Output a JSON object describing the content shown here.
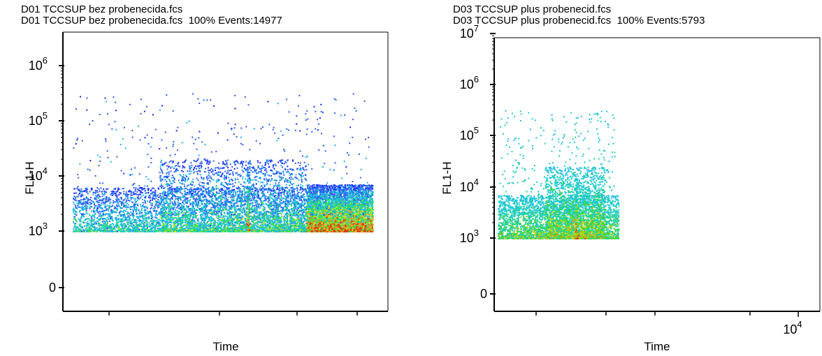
{
  "charts": [
    {
      "title_line1": "D01 TCCSUP bez probenecida.fcs",
      "title_line2": "D01 TCCSUP bez probenecida.fcs  100% Events:14977",
      "xlabel": "Time",
      "ylabel": "FL1-H"
    },
    {
      "title_line1": "D03 TCCSUP plus probenecid.fcs",
      "title_line2": "D03 TCCSUP plus probenecid.fcs  100% Events:5793",
      "xlabel": "Time",
      "ylabel": "FL1-H"
    }
  ],
  "chart_data": [
    {
      "type": "scatter",
      "subtype": "density-dot-plot",
      "title": "D01 TCCSUP bez probenecida.fcs  100% Events:14977",
      "file": "D01 TCCSUP bez probenecida.fcs",
      "events": 14977,
      "gate_percent": "100%",
      "xlabel": "Time",
      "ylabel": "FL1-H",
      "yscale": "log",
      "y_ticks": [
        {
          "value": 0,
          "label": "0"
        },
        {
          "value": 1000,
          "base": "10",
          "exp": "3"
        },
        {
          "value": 10000,
          "base": "10",
          "exp": "4"
        },
        {
          "value": 100000,
          "base": "10",
          "exp": "5"
        },
        {
          "value": 1000000,
          "base": "10",
          "exp": "6"
        }
      ],
      "x_tick_labels": [],
      "density_colors": [
        "#1a1aff",
        "#2a5cf0",
        "#1fb0e8",
        "#22d0b0",
        "#3ce23c",
        "#c8e81c",
        "#f0a020",
        "#e03a10"
      ],
      "populations": [
        {
          "x_range": [
            0.02,
            0.98
          ],
          "y_log_range": [
            3.0,
            3.8
          ],
          "count": 5200,
          "density": 0.35
        },
        {
          "x_range": [
            0.3,
            0.78
          ],
          "y_log_range": [
            3.0,
            4.3
          ],
          "count": 2400,
          "density": 0.45
        },
        {
          "x_range": [
            0.78,
            0.995
          ],
          "y_log_range": [
            3.0,
            3.85
          ],
          "count": 4200,
          "density": 0.9
        },
        {
          "x_range": [
            0.02,
            0.99
          ],
          "y_log_range": [
            3.3,
            5.5
          ],
          "count": 500,
          "density": 0.15
        },
        {
          "x_range": [
            0.585,
            0.595
          ],
          "y_log_range": [
            3.0,
            4.3
          ],
          "count": 180,
          "density": 0.7
        }
      ]
    },
    {
      "type": "scatter",
      "subtype": "density-dot-plot",
      "title": "D03 TCCSUP plus probenecid.fcs  100% Events:5793",
      "file": "D03 TCCSUP plus probenecid.fcs",
      "events": 5793,
      "gate_percent": "100%",
      "xlabel": "Time",
      "ylabel": "FL1-H",
      "yscale": "log",
      "y_ticks": [
        {
          "value": 0,
          "label": "0"
        },
        {
          "value": 1000,
          "base": "10",
          "exp": "3"
        },
        {
          "value": 10000,
          "base": "10",
          "exp": "4"
        },
        {
          "value": 100000,
          "base": "10",
          "exp": "5"
        },
        {
          "value": 1000000,
          "base": "10",
          "exp": "6"
        },
        {
          "value": 10000000,
          "base": "10",
          "exp": "7"
        }
      ],
      "x_tick_labels": [
        {
          "base": "10",
          "exp": "4"
        }
      ],
      "density_colors": [
        "#27b8f0",
        "#1cc8d8",
        "#22d0a0",
        "#3cd63c",
        "#b8d818",
        "#e0a018",
        "#d04010"
      ],
      "populations": [
        {
          "x_range": [
            0.01,
            0.62
          ],
          "y_log_range": [
            3.0,
            3.85
          ],
          "count": 3300,
          "density": 0.45
        },
        {
          "x_range": [
            0.25,
            0.55
          ],
          "y_log_range": [
            3.0,
            4.4
          ],
          "count": 1800,
          "density": 0.55
        },
        {
          "x_range": [
            0.02,
            0.6
          ],
          "y_log_range": [
            3.5,
            5.5
          ],
          "count": 400,
          "density": 0.15
        },
        {
          "x_range": [
            0.4,
            0.415
          ],
          "y_log_range": [
            3.0,
            4.0
          ],
          "count": 120,
          "density": 0.85
        }
      ]
    }
  ]
}
